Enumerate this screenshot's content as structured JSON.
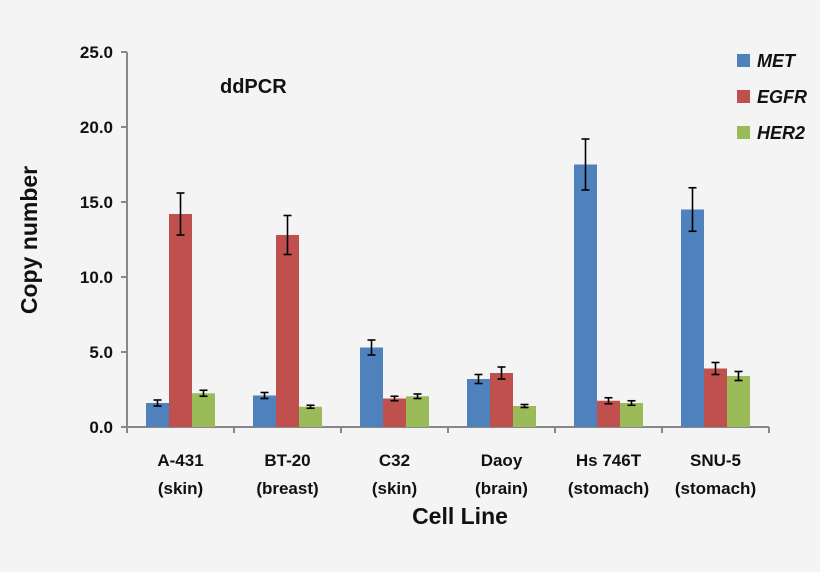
{
  "chart_data": {
    "type": "bar",
    "title": "ddPCR",
    "xlabel": "Cell Line",
    "ylabel": "Copy number",
    "ylim": [
      0,
      25
    ],
    "yticks": [
      "0.0",
      "5.0",
      "10.0",
      "15.0",
      "20.0",
      "25.0"
    ],
    "categories": [
      [
        "A-431",
        "(skin)"
      ],
      [
        "BT-20",
        "(breast)"
      ],
      [
        "C32",
        "(skin)"
      ],
      [
        "Daoy",
        "(brain)"
      ],
      [
        "Hs 746T",
        "(stomach)"
      ],
      [
        "SNU-5",
        "(stomach)"
      ]
    ],
    "legend_position": "top-right",
    "grid": false,
    "series": [
      {
        "name": "MET",
        "color": "#4f81bd",
        "values": [
          1.6,
          2.1,
          5.3,
          3.2,
          17.5,
          14.5
        ],
        "errors": [
          0.2,
          0.2,
          0.5,
          0.3,
          1.7,
          1.45
        ]
      },
      {
        "name": "EGFR",
        "color": "#c0504d",
        "values": [
          14.2,
          12.8,
          1.9,
          3.6,
          1.75,
          3.9
        ],
        "errors": [
          1.4,
          1.3,
          0.15,
          0.4,
          0.2,
          0.4
        ]
      },
      {
        "name": "HER2",
        "color": "#9bbb59",
        "values": [
          2.25,
          1.35,
          2.05,
          1.4,
          1.6,
          3.4
        ],
        "errors": [
          0.2,
          0.1,
          0.15,
          0.1,
          0.15,
          0.3
        ]
      }
    ]
  }
}
